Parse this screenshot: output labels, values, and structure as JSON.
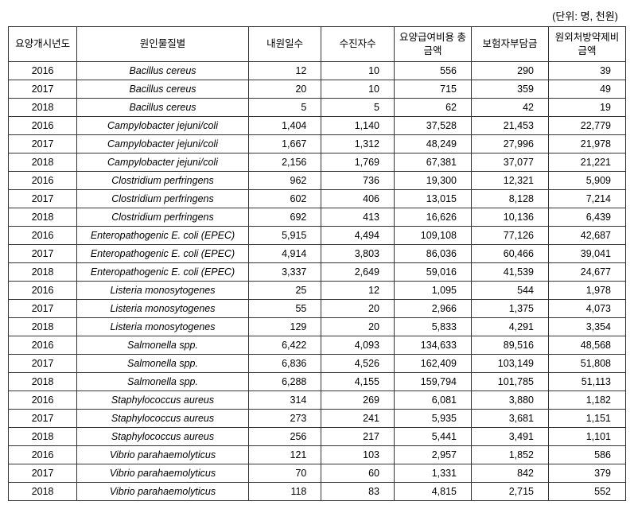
{
  "unit_label": "(단위: 명, 천원)",
  "headers": {
    "year": "요양개시년도",
    "cause": "원인물질별",
    "visit_days": "내원일수",
    "patients": "수진자수",
    "total_cost": "요양급여비용 총금액",
    "insurer_cost": "보험자부담금",
    "rx_cost": "원외처방약제비 금액"
  },
  "rows": [
    {
      "year": "2016",
      "cause": "Bacillus cereus",
      "visit": "12",
      "patients": "10",
      "total": "556",
      "insurer": "290",
      "rx": "39"
    },
    {
      "year": "2017",
      "cause": "Bacillus cereus",
      "visit": "20",
      "patients": "10",
      "total": "715",
      "insurer": "359",
      "rx": "49"
    },
    {
      "year": "2018",
      "cause": "Bacillus cereus",
      "visit": "5",
      "patients": "5",
      "total": "62",
      "insurer": "42",
      "rx": "19"
    },
    {
      "year": "2016",
      "cause": "Campylobacter jejuni/coli",
      "visit": "1,404",
      "patients": "1,140",
      "total": "37,528",
      "insurer": "21,453",
      "rx": "22,779"
    },
    {
      "year": "2017",
      "cause": "Campylobacter jejuni/coli",
      "visit": "1,667",
      "patients": "1,312",
      "total": "48,249",
      "insurer": "27,996",
      "rx": "21,978"
    },
    {
      "year": "2018",
      "cause": "Campylobacter jejuni/coli",
      "visit": "2,156",
      "patients": "1,769",
      "total": "67,381",
      "insurer": "37,077",
      "rx": "21,221"
    },
    {
      "year": "2016",
      "cause": "Clostridium perfringens",
      "visit": "962",
      "patients": "736",
      "total": "19,300",
      "insurer": "12,321",
      "rx": "5,909"
    },
    {
      "year": "2017",
      "cause": "Clostridium perfringens",
      "visit": "602",
      "patients": "406",
      "total": "13,015",
      "insurer": "8,128",
      "rx": "7,214"
    },
    {
      "year": "2018",
      "cause": "Clostridium perfringens",
      "visit": "692",
      "patients": "413",
      "total": "16,626",
      "insurer": "10,136",
      "rx": "6,439"
    },
    {
      "year": "2016",
      "cause": "Enteropathogenic E. coli (EPEC)",
      "visit": "5,915",
      "patients": "4,494",
      "total": "109,108",
      "insurer": "77,126",
      "rx": "42,687"
    },
    {
      "year": "2017",
      "cause": "Enteropathogenic E. coli (EPEC)",
      "visit": "4,914",
      "patients": "3,803",
      "total": "86,036",
      "insurer": "60,466",
      "rx": "39,041"
    },
    {
      "year": "2018",
      "cause": "Enteropathogenic E. coli (EPEC)",
      "visit": "3,337",
      "patients": "2,649",
      "total": "59,016",
      "insurer": "41,539",
      "rx": "24,677"
    },
    {
      "year": "2016",
      "cause": "Listeria monosytogenes",
      "visit": "25",
      "patients": "12",
      "total": "1,095",
      "insurer": "544",
      "rx": "1,978"
    },
    {
      "year": "2017",
      "cause": "Listeria monosytogenes",
      "visit": "55",
      "patients": "20",
      "total": "2,966",
      "insurer": "1,375",
      "rx": "4,073"
    },
    {
      "year": "2018",
      "cause": "Listeria monosytogenes",
      "visit": "129",
      "patients": "20",
      "total": "5,833",
      "insurer": "4,291",
      "rx": "3,354"
    },
    {
      "year": "2016",
      "cause": "Salmonella spp.",
      "visit": "6,422",
      "patients": "4,093",
      "total": "134,633",
      "insurer": "89,516",
      "rx": "48,568"
    },
    {
      "year": "2017",
      "cause": "Salmonella spp.",
      "visit": "6,836",
      "patients": "4,526",
      "total": "162,409",
      "insurer": "103,149",
      "rx": "51,808"
    },
    {
      "year": "2018",
      "cause": "Salmonella spp.",
      "visit": "6,288",
      "patients": "4,155",
      "total": "159,794",
      "insurer": "101,785",
      "rx": "51,113"
    },
    {
      "year": "2016",
      "cause": "Staphylococcus aureus",
      "visit": "314",
      "patients": "269",
      "total": "6,081",
      "insurer": "3,880",
      "rx": "1,182"
    },
    {
      "year": "2017",
      "cause": "Staphylococcus aureus",
      "visit": "273",
      "patients": "241",
      "total": "5,935",
      "insurer": "3,681",
      "rx": "1,151"
    },
    {
      "year": "2018",
      "cause": "Staphylococcus aureus",
      "visit": "256",
      "patients": "217",
      "total": "5,441",
      "insurer": "3,491",
      "rx": "1,101"
    },
    {
      "year": "2016",
      "cause": "Vibrio parahaemolyticus",
      "visit": "121",
      "patients": "103",
      "total": "2,957",
      "insurer": "1,852",
      "rx": "586"
    },
    {
      "year": "2017",
      "cause": "Vibrio parahaemolyticus",
      "visit": "70",
      "patients": "60",
      "total": "1,331",
      "insurer": "842",
      "rx": "379"
    },
    {
      "year": "2018",
      "cause": "Vibrio parahaemolyticus",
      "visit": "118",
      "patients": "83",
      "total": "4,815",
      "insurer": "2,715",
      "rx": "552"
    }
  ]
}
